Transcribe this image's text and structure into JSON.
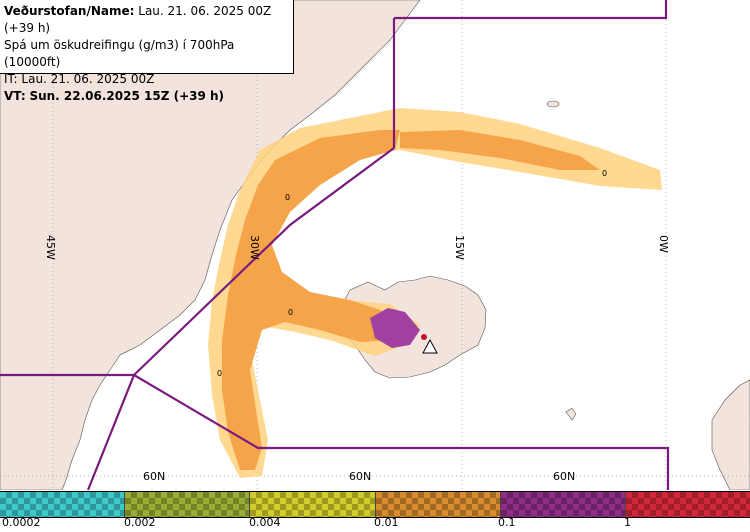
{
  "info": {
    "line1_label": "Veðurstofan/Name:",
    "line1_value": "Lau. 21. 06. 2025 00Z (+39 h)",
    "line2": "Spá um öskudreifingu (g/m3) í 700hPa (10000ft)",
    "line3": "IT: Lau. 21. 06. 2025 00Z",
    "line4_label": "VT:",
    "line4_value": "Sun. 22.06.2025 15Z (+39 h)"
  },
  "map": {
    "longitude_labels": [
      "45W",
      "30W",
      "15W",
      "0W"
    ],
    "latitude_labels": [
      "60N",
      "60N",
      "60N"
    ],
    "contour_labels": [
      "0",
      "0",
      "0",
      "0"
    ],
    "colors": {
      "land": "#f2e4dc",
      "sea": "#ffffff",
      "boundary": "#7b1a7e",
      "plume_low": "#ffd27f",
      "plume_mid": "#f5a449",
      "plume_high": "#a040a0",
      "source": "#c0102a"
    },
    "source_icon": "volcano-triangle-icon"
  },
  "legend": {
    "colors": [
      "#3ec9cc",
      "#9aae34",
      "#d2cc2c",
      "#d88c2e",
      "#8e2e86",
      "#d4283a"
    ],
    "tick_labels": [
      "0.0002",
      "0.002",
      "0.004",
      "0.01",
      "0.1",
      "1"
    ]
  }
}
